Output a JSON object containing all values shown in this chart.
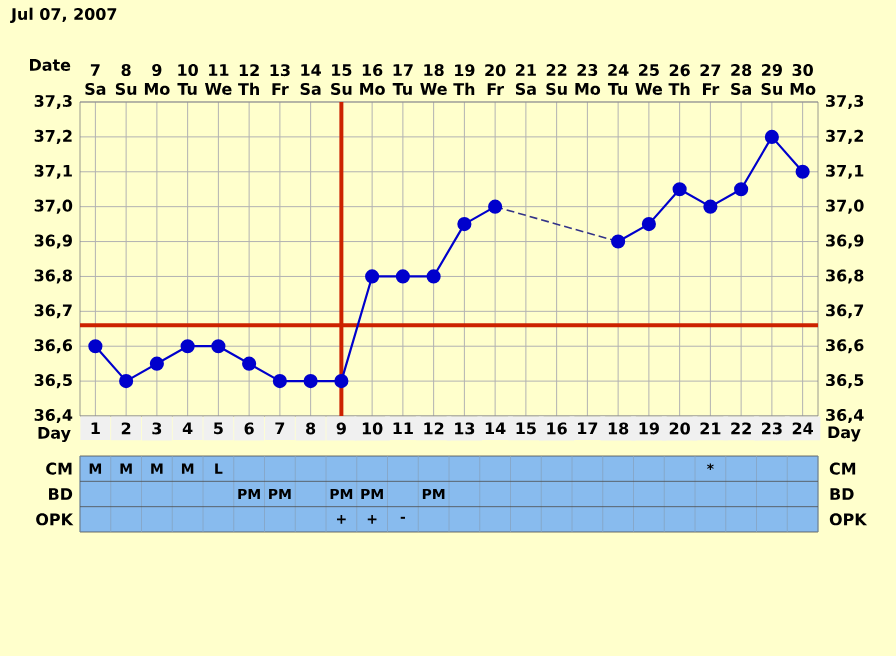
{
  "chart_data": [
    {
      "type": "line",
      "title": "Jul 07, 2007",
      "xlabel": "Day",
      "x2label": "Date",
      "x": [
        1,
        2,
        3,
        4,
        5,
        6,
        7,
        8,
        9,
        10,
        11,
        12,
        13,
        14,
        15,
        16,
        17,
        18,
        19,
        20,
        21,
        22,
        23,
        24
      ],
      "xlim": [
        0.5,
        24.5
      ],
      "xticks": [
        1,
        2,
        3,
        4,
        5,
        6,
        7,
        8,
        9,
        10,
        11,
        12,
        13,
        14,
        15,
        16,
        17,
        18,
        19,
        20,
        21,
        22,
        23,
        24
      ],
      "x2lim": [
        "2007-07-06T12:00",
        "2007-07-30T12:00"
      ],
      "x2ticks": [
        {
          "value": "2007-07-07",
          "label": "7 Sa"
        },
        {
          "value": "2007-07-08",
          "label": "8 Su"
        },
        {
          "value": "2007-07-09",
          "label": "9 Mo"
        },
        {
          "value": "2007-07-10",
          "label": "10 Tu"
        },
        {
          "value": "2007-07-11",
          "label": "11 We"
        },
        {
          "value": "2007-07-12",
          "label": "12 Th"
        },
        {
          "value": "2007-07-13",
          "label": "13 Fr"
        },
        {
          "value": "2007-07-14",
          "label": "14 Sa"
        },
        {
          "value": "2007-07-15",
          "label": "15 Su"
        },
        {
          "value": "2007-07-16",
          "label": "16 Mo"
        },
        {
          "value": "2007-07-17",
          "label": "17 Tu"
        },
        {
          "value": "2007-07-18",
          "label": "18 We"
        },
        {
          "value": "2007-07-19",
          "label": "19 Th"
        },
        {
          "value": "2007-07-20",
          "label": "20 Fr"
        },
        {
          "value": "2007-07-21",
          "label": "21 Sa"
        },
        {
          "value": "2007-07-22",
          "label": "22 Su"
        },
        {
          "value": "2007-07-23",
          "label": "23 Mo"
        },
        {
          "value": "2007-07-24",
          "label": "24 Tu"
        },
        {
          "value": "2007-07-25",
          "label": "25 We"
        },
        {
          "value": "2007-07-26",
          "label": "26 Th"
        },
        {
          "value": "2007-07-27",
          "label": "27 Fr"
        },
        {
          "value": "2007-07-28",
          "label": "28 Sa"
        },
        {
          "value": "2007-07-29",
          "label": "29 Su"
        },
        {
          "value": "2007-07-30",
          "label": "30 Mo"
        }
      ],
      "ylim": [
        36.4,
        37.3
      ],
      "yticks": [
        {
          "value": 36.4,
          "label": "36,4"
        },
        {
          "value": 36.5,
          "label": "36,5"
        },
        {
          "value": 36.6,
          "label": "36,6"
        },
        {
          "value": 36.7,
          "label": "36,7"
        },
        {
          "value": 36.8,
          "label": "36,8"
        },
        {
          "value": 36.9,
          "label": "36,9"
        },
        {
          "value": 37.0,
          "label": "37,0"
        },
        {
          "value": 37.1,
          "label": "37,1"
        },
        {
          "value": 37.2,
          "label": "37,2"
        },
        {
          "value": 37.3,
          "label": "37,3"
        }
      ],
      "y2lim": [
        36.4,
        37.3
      ],
      "y2ticks": [
        {
          "value": 36.4,
          "label": "36,4"
        },
        {
          "value": 36.5,
          "label": "36,5"
        },
        {
          "value": 36.6,
          "label": "36,6"
        },
        {
          "value": 36.7,
          "label": "36,7"
        },
        {
          "value": 36.8,
          "label": "36,8"
        },
        {
          "value": 36.9,
          "label": "36,9"
        },
        {
          "value": 37.0,
          "label": "37,0"
        },
        {
          "value": 37.1,
          "label": "37,1"
        },
        {
          "value": 37.2,
          "label": "37,2"
        },
        {
          "value": 37.3,
          "label": "37,3"
        }
      ],
      "grid": true,
      "marker": "circle",
      "series": [
        {
          "color": "#0000cc",
          "values": [
            36.6,
            36.5,
            36.55,
            36.6,
            36.6,
            36.55,
            36.5,
            36.5,
            36.5,
            36.8,
            36.8,
            36.8,
            36.95,
            37.0,
            null,
            null,
            null,
            36.9,
            36.95,
            37.05,
            37.0,
            37.05,
            37.2,
            37.1
          ]
        },
        {
          "type": "line",
          "color": "#333388",
          "x": [
            14,
            18
          ],
          "values": [
            37.0,
            36.9
          ],
          "line_style": "dashed",
          "marker": "none"
        }
      ],
      "ref_lines": [
        {
          "axis": "y",
          "value": 36.66,
          "color": "#cc2200"
        },
        {
          "axis": "x",
          "value": 9,
          "color": "#cc2200"
        }
      ]
    },
    {
      "type": "heatmap",
      "tick_labels": "y",
      "categories": [
        null,
        null,
        null,
        null,
        null,
        null,
        null,
        null,
        null,
        null,
        null,
        null,
        null,
        null,
        null,
        null,
        null,
        null,
        null,
        null,
        null,
        null,
        null,
        null
      ],
      "y_categories": [
        "CM",
        "BD",
        "OPK"
      ],
      "y2_categories": [
        "CM",
        "BD",
        "OPK"
      ],
      "cells": [
        [
          null,
          null,
          null,
          null,
          null,
          null,
          null,
          null,
          null,
          null,
          null,
          null,
          null,
          null,
          null,
          null,
          null,
          null,
          null,
          null,
          null,
          null,
          null,
          null
        ],
        [
          null,
          null,
          null,
          null,
          null,
          null,
          null,
          null,
          null,
          null,
          null,
          null,
          null,
          null,
          null,
          null,
          null,
          null,
          null,
          null,
          null,
          null,
          null,
          null
        ],
        [
          null,
          null,
          null,
          null,
          null,
          null,
          null,
          null,
          null,
          null,
          null,
          null,
          null,
          null,
          null,
          null,
          null,
          null,
          null,
          null,
          null,
          null,
          null,
          null
        ]
      ],
      "cell_labels": [
        [
          "M",
          "M",
          "M",
          "M",
          "L",
          null,
          null,
          null,
          null,
          null,
          null,
          null,
          null,
          null,
          null,
          null,
          null,
          null,
          null,
          null,
          "*",
          null,
          null,
          null
        ],
        [
          null,
          null,
          null,
          null,
          null,
          "PM",
          "PM",
          null,
          "PM",
          "PM",
          null,
          "PM",
          null,
          null,
          null,
          null,
          null,
          null,
          null,
          null,
          null,
          null,
          null,
          null
        ],
        [
          null,
          null,
          null,
          null,
          null,
          null,
          null,
          null,
          "+",
          "+",
          "-",
          null,
          null,
          null,
          null,
          null,
          null,
          null,
          null,
          null,
          null,
          null,
          null,
          null
        ]
      ]
    }
  ]
}
